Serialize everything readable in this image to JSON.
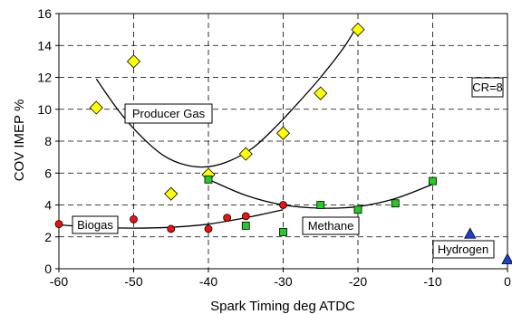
{
  "chart_data": {
    "type": "scatter",
    "xlabel": "Spark Timing  deg ATDC",
    "ylabel": "COV IMEP  %",
    "xlim": [
      -60,
      0
    ],
    "ylim": [
      0,
      16
    ],
    "x_ticks": [
      "-60",
      "-50",
      "-40",
      "-30",
      "-20",
      "-10",
      "0"
    ],
    "y_ticks": [
      "0",
      "2",
      "4",
      "6",
      "8",
      "10",
      "12",
      "14",
      "16"
    ],
    "grid": "dashed",
    "annotation": "CR=8",
    "series": [
      {
        "name": "Producer Gas",
        "marker": "diamond",
        "color": "#ffff00",
        "points": [
          {
            "x": -55,
            "y": 10.1
          },
          {
            "x": -50,
            "y": 13.0
          },
          {
            "x": -45,
            "y": 4.7
          },
          {
            "x": -40,
            "y": 5.9
          },
          {
            "x": -35,
            "y": 7.2
          },
          {
            "x": -30,
            "y": 8.5
          },
          {
            "x": -25,
            "y": 11.0
          },
          {
            "x": -20,
            "y": 15.0
          }
        ],
        "trend": [
          {
            "x": -55,
            "y": 11.9
          },
          {
            "x": -52,
            "y": 9.9
          },
          {
            "x": -49,
            "y": 8.3
          },
          {
            "x": -46,
            "y": 7.1
          },
          {
            "x": -43,
            "y": 6.5
          },
          {
            "x": -40,
            "y": 6.4
          },
          {
            "x": -37,
            "y": 6.8
          },
          {
            "x": -34,
            "y": 7.6
          },
          {
            "x": -31,
            "y": 8.9
          },
          {
            "x": -28,
            "y": 10.4
          },
          {
            "x": -25,
            "y": 12.0
          },
          {
            "x": -22,
            "y": 13.8
          },
          {
            "x": -20,
            "y": 15.3
          }
        ]
      },
      {
        "name": "Biogas",
        "marker": "circle",
        "color": "#ee1111",
        "points": [
          {
            "x": -60,
            "y": 2.8
          },
          {
            "x": -50,
            "y": 3.1
          },
          {
            "x": -45,
            "y": 2.5
          },
          {
            "x": -40,
            "y": 2.5
          },
          {
            "x": -37.5,
            "y": 3.2
          },
          {
            "x": -35,
            "y": 3.3
          },
          {
            "x": -30,
            "y": 4.0
          }
        ],
        "trend": [
          {
            "x": -60,
            "y": 2.75
          },
          {
            "x": -55,
            "y": 2.6
          },
          {
            "x": -50,
            "y": 2.55
          },
          {
            "x": -45,
            "y": 2.6
          },
          {
            "x": -40,
            "y": 2.8
          },
          {
            "x": -35,
            "y": 3.2
          },
          {
            "x": -30,
            "y": 3.7
          }
        ]
      },
      {
        "name": "Methane",
        "marker": "square",
        "color": "#22cc22",
        "points": [
          {
            "x": -40,
            "y": 5.6
          },
          {
            "x": -35,
            "y": 2.7
          },
          {
            "x": -30,
            "y": 2.3
          },
          {
            "x": -25,
            "y": 4.0
          },
          {
            "x": -20,
            "y": 3.7
          },
          {
            "x": -15,
            "y": 4.1
          },
          {
            "x": -10,
            "y": 5.5
          }
        ],
        "trend": [
          {
            "x": -40,
            "y": 5.6
          },
          {
            "x": -35,
            "y": 4.6
          },
          {
            "x": -30,
            "y": 4.0
          },
          {
            "x": -25,
            "y": 3.8
          },
          {
            "x": -20,
            "y": 3.9
          },
          {
            "x": -15,
            "y": 4.4
          },
          {
            "x": -10,
            "y": 5.3
          }
        ]
      },
      {
        "name": "Hydrogen",
        "marker": "triangle",
        "color": "#1f3fd1",
        "points": [
          {
            "x": -5,
            "y": 2.2
          },
          {
            "x": 0,
            "y": 0.6
          }
        ],
        "trend": []
      }
    ]
  }
}
